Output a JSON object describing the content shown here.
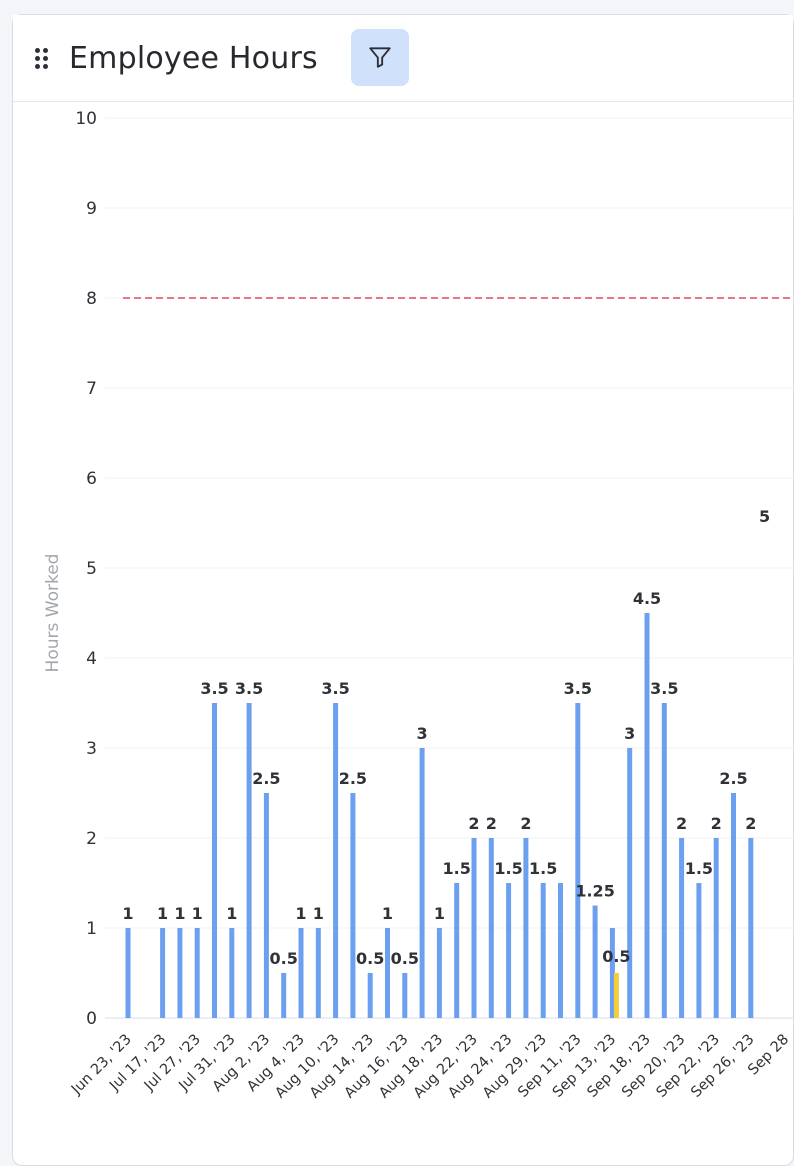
{
  "card": {
    "title": "Employee Hours",
    "drag_icon": "drag-handle-icon",
    "filter_icon": "filter-icon"
  },
  "colors": {
    "bar": "#6b9ff0",
    "highlight_bar": "#f4cd3a",
    "target_line": "#e0485a",
    "grid": "#eef0f3",
    "filter_button_bg": "#cfe1fb"
  },
  "chart_data": {
    "type": "bar",
    "ylabel": "Hours Worked",
    "xlabel": "",
    "ylim": [
      0,
      10
    ],
    "yticks": [
      0,
      1,
      2,
      3,
      4,
      5,
      6,
      7,
      8,
      9,
      10
    ],
    "x_tick_labels": [
      "Jun 23, '23",
      "Jul 17, '23",
      "Jul 27, '23",
      "Jul 31, '23",
      "Aug 2, '23",
      "Aug 4, '23",
      "Aug 10, '23",
      "Aug 14, '23",
      "Aug 16, '23",
      "Aug 18, '23",
      "Aug 22, '23",
      "Aug 24, '23",
      "Aug 29, '23",
      "Sep 11, '23",
      "Sep 13, '23",
      "Sep 18, '23",
      "Sep 20, '23",
      "Sep 22, '23",
      "Sep 26, '23",
      "Sep 28"
    ],
    "values": [
      1,
      null,
      1,
      1,
      1,
      3.5,
      1,
      3.5,
      2.5,
      0.5,
      1,
      1,
      3.5,
      2.5,
      0.5,
      1,
      0.5,
      3,
      1,
      1.5,
      2,
      2,
      1.5,
      2,
      1.5,
      1.5,
      3.5,
      1.25,
      1,
      3,
      4.5,
      3.5,
      2,
      1.5,
      2,
      2.5,
      2
    ],
    "value_labels": [
      "1",
      "",
      "1",
      "1",
      "1",
      "3.5",
      "1",
      "3.5",
      "2.5",
      "0.5",
      "1",
      "1",
      "3.5",
      "2.5",
      "0.5",
      "1",
      "0.5",
      "3",
      "1",
      "1.5",
      "2",
      "2",
      "1.5",
      "2",
      "1.5",
      "",
      "3.5",
      "1.25",
      "",
      "3",
      "4.5",
      "3.5",
      "2",
      "1.5",
      "2",
      "2.5",
      "2"
    ],
    "highlight_bar": {
      "value": 0.5,
      "label": "0.5"
    },
    "reference_line": {
      "value": 8,
      "style": "dashed"
    },
    "edge_label": "5",
    "grid": true,
    "legend": "none"
  }
}
